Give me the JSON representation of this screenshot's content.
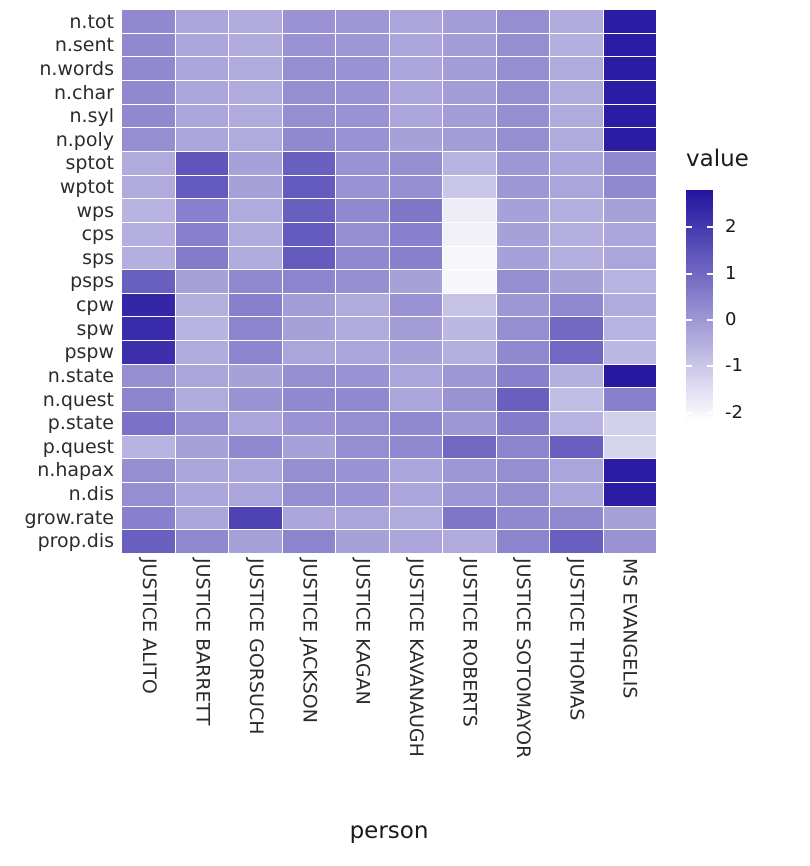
{
  "chart_data": {
    "type": "heatmap",
    "title": "",
    "xlabel": "person",
    "ylabel": "",
    "legend_title": "value",
    "legend_position": "right",
    "grid": false,
    "rows": [
      "n.tot",
      "n.sent",
      "n.words",
      "n.char",
      "n.syl",
      "n.poly",
      "sptot",
      "wptot",
      "wps",
      "cps",
      "sps",
      "psps",
      "cpw",
      "spw",
      "pspw",
      "n.state",
      "n.quest",
      "p.state",
      "p.quest",
      "n.hapax",
      "n.dis",
      "grow.rate",
      "prop.dis"
    ],
    "columns": [
      "JUSTICE ALITO",
      "JUSTICE BARRETT",
      "JUSTICE GORSUCH",
      "JUSTICE JACKSON",
      "JUSTICE KAGAN",
      "JUSTICE KAVANAUGH",
      "JUSTICE ROBERTS",
      "JUSTICE SOTOMAYOR",
      "JUSTICE THOMAS",
      "MS EVANGELIS"
    ],
    "values": [
      [
        0.3,
        -0.3,
        -0.4,
        0.1,
        0.0,
        -0.3,
        -0.1,
        0.2,
        -0.4,
        2.6
      ],
      [
        0.3,
        -0.3,
        -0.4,
        0.1,
        0.0,
        -0.3,
        -0.1,
        0.2,
        -0.5,
        2.6
      ],
      [
        0.3,
        -0.3,
        -0.4,
        0.2,
        0.1,
        -0.3,
        -0.1,
        0.2,
        -0.4,
        2.6
      ],
      [
        0.3,
        -0.3,
        -0.4,
        0.2,
        0.1,
        -0.3,
        -0.1,
        0.2,
        -0.4,
        2.6
      ],
      [
        0.3,
        -0.3,
        -0.4,
        0.2,
        0.1,
        -0.3,
        -0.1,
        0.2,
        -0.4,
        2.6
      ],
      [
        0.2,
        -0.3,
        -0.4,
        0.3,
        0.1,
        -0.2,
        -0.1,
        0.2,
        -0.4,
        2.6
      ],
      [
        -0.4,
        1.4,
        -0.2,
        1.2,
        0.1,
        0.2,
        -0.6,
        0.0,
        -0.3,
        0.3
      ],
      [
        -0.4,
        1.3,
        -0.2,
        1.3,
        0.1,
        0.2,
        -1.0,
        0.0,
        -0.3,
        0.3
      ],
      [
        -0.6,
        0.5,
        -0.4,
        1.2,
        0.3,
        0.7,
        -1.8,
        -0.2,
        -0.5,
        -0.2
      ],
      [
        -0.5,
        0.5,
        -0.4,
        1.3,
        0.2,
        0.5,
        -1.9,
        -0.2,
        -0.5,
        -0.3
      ],
      [
        -0.5,
        0.6,
        -0.4,
        1.3,
        0.3,
        0.5,
        -2.0,
        -0.2,
        -0.5,
        -0.3
      ],
      [
        1.2,
        -0.2,
        0.3,
        0.4,
        0.2,
        -0.2,
        -2.0,
        0.2,
        -0.2,
        -0.6
      ],
      [
        2.4,
        -0.5,
        0.5,
        -0.1,
        -0.4,
        0.1,
        -0.9,
        0.0,
        0.3,
        -0.4
      ],
      [
        2.3,
        -0.6,
        0.4,
        -0.2,
        -0.4,
        -0.1,
        -0.7,
        0.2,
        1.0,
        -0.6
      ],
      [
        2.2,
        -0.4,
        0.4,
        -0.3,
        -0.3,
        -0.2,
        -0.5,
        0.3,
        1.0,
        -0.7
      ],
      [
        0.2,
        -0.3,
        -0.2,
        0.2,
        0.1,
        -0.3,
        0.0,
        0.5,
        -0.5,
        2.7
      ],
      [
        0.4,
        -0.4,
        0.1,
        0.3,
        0.3,
        -0.3,
        0.1,
        1.2,
        -0.8,
        0.5
      ],
      [
        0.8,
        0.2,
        -0.3,
        0.1,
        0.2,
        0.3,
        0.0,
        0.6,
        -0.6,
        -1.2
      ],
      [
        -0.6,
        -0.2,
        0.3,
        -0.2,
        0.2,
        0.3,
        1.0,
        0.4,
        1.2,
        -1.3
      ],
      [
        0.2,
        -0.3,
        -0.3,
        0.2,
        0.1,
        -0.3,
        0.0,
        0.2,
        -0.3,
        2.6
      ],
      [
        0.2,
        -0.3,
        -0.3,
        0.2,
        0.1,
        -0.3,
        0.0,
        0.2,
        -0.3,
        2.6
      ],
      [
        0.5,
        -0.3,
        1.8,
        -0.3,
        -0.3,
        -0.4,
        0.7,
        0.3,
        0.3,
        -0.2
      ],
      [
        1.2,
        0.3,
        -0.2,
        0.4,
        -0.2,
        -0.3,
        -0.4,
        0.4,
        1.2,
        0.1
      ]
    ],
    "color_scale": {
      "low": "#FFFFFF",
      "high": "#2313A0",
      "domain": [
        -2.2,
        2.8
      ],
      "ticks": [
        2,
        1,
        0,
        -1,
        -2
      ]
    }
  }
}
